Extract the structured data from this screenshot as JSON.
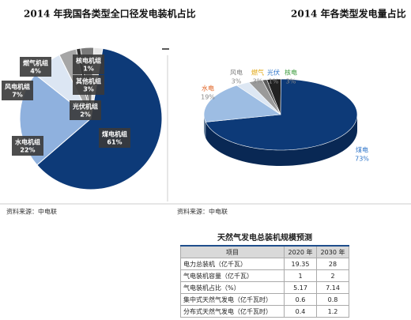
{
  "chart_data": [
    {
      "type": "pie",
      "title": "2014 年我国各类型全口径发电装机占比",
      "categories": [
        "核电机组",
        "其他机组",
        "光伏机组",
        "煤电机组",
        "水电机组",
        "风电机组",
        "燃气机组"
      ],
      "values": [
        1,
        3,
        2,
        61,
        22,
        7,
        4
      ],
      "value_labels": [
        "1%",
        "3%",
        "2%",
        "61%",
        "22%",
        "7%",
        "4%"
      ],
      "colors": [
        "#2f2f2f",
        "#7a7a7a",
        "#e6e6e6",
        "#0d3a78",
        "#8fb1de",
        "#dce6f3",
        "#a6a6a6"
      ],
      "source": "资料来源：中电联"
    },
    {
      "type": "pie3d",
      "title": "2014 年各类型发电量占比",
      "categories": [
        "风电",
        "燃气",
        "光伏",
        "核电",
        "煤电",
        "水电"
      ],
      "values": [
        3,
        3,
        1,
        3,
        73,
        19
      ],
      "value_labels": [
        "3%",
        "3%",
        "1%",
        "3%",
        "73%",
        "19%"
      ],
      "colors": [
        "#dde7f3",
        "#9a9a9a",
        "#5a5a5a",
        "#222222",
        "#0d3a78",
        "#9dbde3"
      ],
      "label_colors": [
        "#7f7f7f",
        "#e0a000",
        "#2e75c9",
        "#3a9a3a",
        "#2e75c9",
        "#e06020"
      ],
      "source": "资料来源：中电联"
    }
  ],
  "table": {
    "title": "天然气发电总装机规模预测",
    "header": [
      "项目",
      "2020 年",
      "2030 年"
    ],
    "rows": [
      [
        "电力总装机（亿千瓦）",
        "19.35",
        "28"
      ],
      [
        "气电装机容量（亿千瓦）",
        "1",
        "2"
      ],
      [
        "气电装机占比（%）",
        "5.17",
        "7.14"
      ],
      [
        "集中式天然气发电（亿千瓦时）",
        "0.6",
        "0.8"
      ],
      [
        "分布式天然气发电（亿千瓦时）",
        "0.4",
        "1.2"
      ]
    ]
  }
}
